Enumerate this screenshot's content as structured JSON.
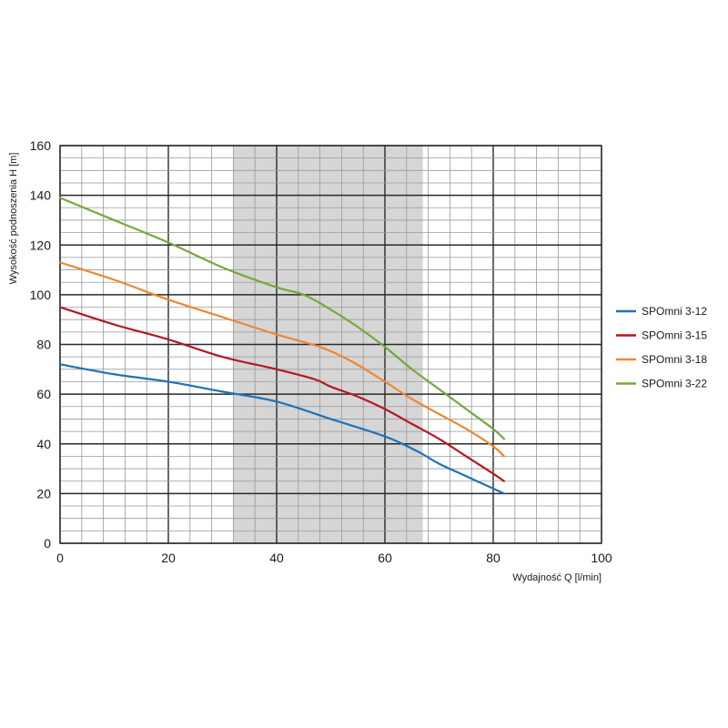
{
  "chart_data": {
    "type": "line",
    "title": "",
    "xlabel": "Wydajność Q [l/min]",
    "ylabel": "Wysokość podnoszenia H [m]",
    "xlim": [
      0,
      100
    ],
    "ylim": [
      0,
      160
    ],
    "x_ticks": [
      "0",
      "20",
      "40",
      "60",
      "80",
      "100"
    ],
    "y_ticks": [
      "0",
      "20",
      "40",
      "60",
      "80",
      "100",
      "120",
      "140",
      "160"
    ],
    "x_tick_values": [
      0,
      20,
      40,
      60,
      80,
      100
    ],
    "y_tick_values": [
      0,
      20,
      40,
      60,
      80,
      100,
      120,
      140,
      160
    ],
    "grid": true,
    "shaded_range": [
      32,
      67
    ],
    "legend_position": "right",
    "series": [
      {
        "name": "SPOmni 3-12",
        "color": "#1f72b8",
        "points": [
          [
            0,
            72
          ],
          [
            10,
            68
          ],
          [
            20,
            65
          ],
          [
            30,
            61
          ],
          [
            40,
            57
          ],
          [
            50,
            50
          ],
          [
            60,
            43
          ],
          [
            66,
            37
          ],
          [
            70,
            32
          ],
          [
            75,
            27
          ],
          [
            80,
            22
          ],
          [
            82,
            20
          ]
        ]
      },
      {
        "name": "SPOmni 3-15",
        "color": "#b3191f",
        "points": [
          [
            0,
            95
          ],
          [
            10,
            88
          ],
          [
            20,
            82
          ],
          [
            30,
            75
          ],
          [
            40,
            70
          ],
          [
            47,
            66
          ],
          [
            50,
            63
          ],
          [
            55,
            59
          ],
          [
            60,
            54
          ],
          [
            65,
            48
          ],
          [
            70,
            42
          ],
          [
            75,
            35
          ],
          [
            80,
            28
          ],
          [
            82,
            25
          ]
        ]
      },
      {
        "name": "SPOmni 3-18",
        "color": "#ee8733",
        "points": [
          [
            0,
            113
          ],
          [
            10,
            106
          ],
          [
            20,
            98
          ],
          [
            30,
            91
          ],
          [
            40,
            84
          ],
          [
            48,
            79
          ],
          [
            54,
            73
          ],
          [
            60,
            65
          ],
          [
            65,
            58
          ],
          [
            70,
            52
          ],
          [
            75,
            46
          ],
          [
            80,
            39
          ],
          [
            82,
            35
          ]
        ]
      },
      {
        "name": "SPOmni 3-22",
        "color": "#75a83d",
        "points": [
          [
            0,
            139
          ],
          [
            10,
            130
          ],
          [
            20,
            121
          ],
          [
            30,
            111
          ],
          [
            40,
            103
          ],
          [
            45,
            100
          ],
          [
            50,
            94
          ],
          [
            55,
            87
          ],
          [
            60,
            79
          ],
          [
            65,
            70
          ],
          [
            70,
            62
          ],
          [
            75,
            54
          ],
          [
            80,
            46
          ],
          [
            82,
            42
          ]
        ]
      }
    ]
  }
}
